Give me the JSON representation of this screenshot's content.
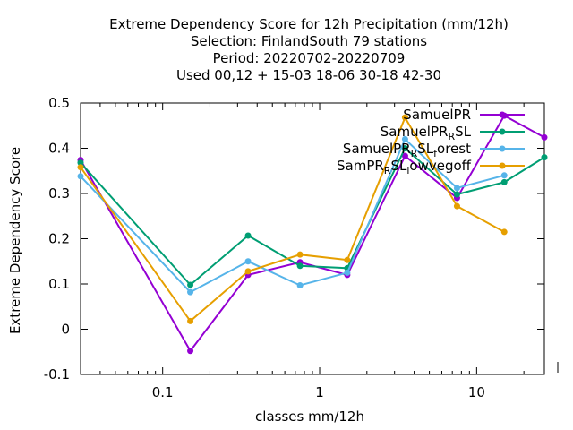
{
  "chart_data": {
    "type": "line",
    "title_lines": [
      "Extreme Dependency Score  for 12h Precipitation (mm/12h)",
      "Selection: FinlandSouth     79 stations",
      "Period: 20220702-20220709",
      "Used  00,12  + 15-03 18-06 30-18 42-30"
    ],
    "xlabel": "classes mm/12h",
    "ylabel": "Extreme Dependency Score",
    "x_scale": "log",
    "xlim": [
      0.03,
      27
    ],
    "ylim": [
      -0.1,
      0.5
    ],
    "x_ticks": [
      {
        "value": 0.1,
        "label": "0.1"
      },
      {
        "value": 1,
        "label": "1"
      },
      {
        "value": 10,
        "label": "10"
      }
    ],
    "y_ticks": [
      {
        "value": -0.1,
        "label": "-0.1"
      },
      {
        "value": 0,
        "label": "0"
      },
      {
        "value": 0.1,
        "label": "0.1"
      },
      {
        "value": 0.2,
        "label": "0.2"
      },
      {
        "value": 0.3,
        "label": "0.3"
      },
      {
        "value": 0.4,
        "label": "0.4"
      },
      {
        "value": 0.5,
        "label": "0.5"
      }
    ],
    "grid": false,
    "legend_position": "top-right",
    "series": [
      {
        "name": "SamuelPR",
        "legend_parts": [
          {
            "text": "SamuelPR",
            "sub": false
          }
        ],
        "color": "#9400d3",
        "x": [
          0.03,
          0.15,
          0.35,
          0.75,
          1.5,
          3.5,
          7.5,
          15,
          27
        ],
        "y": [
          0.374,
          -0.048,
          0.12,
          0.148,
          0.12,
          0.383,
          0.29,
          0.472,
          0.424
        ]
      },
      {
        "name": "SamuelPR_R SL",
        "legend_parts": [
          {
            "text": "SamuelPR",
            "sub": false
          },
          {
            "text": "R",
            "sub": true
          },
          {
            "text": "SL",
            "sub": false
          }
        ],
        "color": "#009e73",
        "x": [
          0.03,
          0.15,
          0.35,
          0.75,
          1.5,
          3.5,
          7.5,
          15,
          27
        ],
        "y": [
          0.368,
          0.098,
          0.207,
          0.14,
          0.135,
          0.4,
          0.298,
          0.325,
          0.38
        ]
      },
      {
        "name": "SamuelPR_R SL_forest",
        "legend_parts": [
          {
            "text": "SamuelPR",
            "sub": false
          },
          {
            "text": "R",
            "sub": true
          },
          {
            "text": "SL",
            "sub": false
          },
          {
            "text": "f",
            "sub": true
          },
          {
            "text": "orest",
            "sub": false
          }
        ],
        "color": "#56b4e9",
        "x": [
          0.03,
          0.15,
          0.35,
          0.75,
          1.5,
          3.5,
          7.5,
          15
        ],
        "y": [
          0.338,
          0.082,
          0.15,
          0.097,
          0.125,
          0.42,
          0.312,
          0.34
        ]
      },
      {
        "name": "SamPR_R SL_lowvegoff",
        "legend_parts": [
          {
            "text": "SamPR",
            "sub": false
          },
          {
            "text": "R",
            "sub": true
          },
          {
            "text": "SL",
            "sub": false
          },
          {
            "text": "l",
            "sub": true
          },
          {
            "text": "owvegoff",
            "sub": false
          }
        ],
        "color": "#e69f00",
        "x": [
          0.03,
          0.15,
          0.35,
          0.75,
          1.5,
          3.5,
          7.5,
          15
        ],
        "y": [
          0.358,
          0.018,
          0.128,
          0.165,
          0.153,
          0.468,
          0.272,
          0.215
        ]
      }
    ]
  }
}
